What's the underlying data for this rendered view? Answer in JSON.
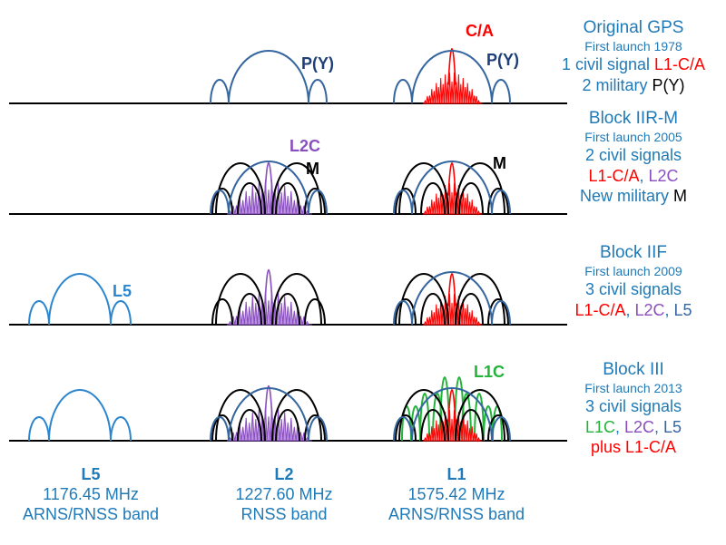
{
  "colors": {
    "title_blue": "#1f7ab8",
    "military_blue": "#3566a0",
    "py_label": "#1f3f78",
    "ca_red": "#ff0000",
    "ca_fill": "#ff7a7a",
    "l2c_purple": "#8a4fbf",
    "l2c_fill": "#b07fe0",
    "m_black": "#000000",
    "l5_blue": "#2b86cf",
    "l1c_green": "#22b33a",
    "axis": "#000000"
  },
  "panels": [
    {
      "title": "Original GPS",
      "launch": "First launch 1978",
      "lines": [
        [
          {
            "t": "1 civil signal ",
            "c": "#1f7ab8"
          },
          {
            "t": "L1-C/A",
            "c": "#ff0000"
          }
        ],
        [
          {
            "t": "2 military ",
            "c": "#1f7ab8"
          },
          {
            "t": "P(Y)",
            "c": "#000000"
          }
        ]
      ],
      "labels": {
        "l2_py": "P(Y)",
        "l1_ca": "C/A",
        "l1_py": "P(Y)"
      }
    },
    {
      "title": "Block IIR-M",
      "launch": "First launch 2005",
      "lines": [
        [
          {
            "t": "2 civil signals",
            "c": "#1f7ab8"
          }
        ],
        [
          {
            "t": "L1-C/A",
            "c": "#ff0000"
          },
          {
            "t": ", ",
            "c": "#1f7ab8"
          },
          {
            "t": "L2C",
            "c": "#8a4fbf"
          }
        ],
        [
          {
            "t": "New military ",
            "c": "#1f7ab8"
          },
          {
            "t": "M",
            "c": "#000000"
          }
        ]
      ],
      "labels": {
        "l2_l2c": "L2C",
        "l2_m": "M",
        "l1_m": "M"
      }
    },
    {
      "title": "Block IIF",
      "launch": "First launch 2009",
      "lines": [
        [
          {
            "t": "3 civil signals",
            "c": "#1f7ab8"
          }
        ],
        [
          {
            "t": "L1-C/A",
            "c": "#ff0000"
          },
          {
            "t": ", ",
            "c": "#1f7ab8"
          },
          {
            "t": "L2C",
            "c": "#8a4fbf"
          },
          {
            "t": ", ",
            "c": "#1f7ab8"
          },
          {
            "t": "L5",
            "c": "#3566a0"
          }
        ]
      ],
      "labels": {
        "l5": "L5"
      }
    },
    {
      "title": "Block III",
      "launch": "First launch 2013",
      "lines": [
        [
          {
            "t": "3 civil signals",
            "c": "#1f7ab8"
          }
        ],
        [
          {
            "t": "L1C",
            "c": "#22b33a"
          },
          {
            "t": ", ",
            "c": "#1f7ab8"
          },
          {
            "t": "L2C",
            "c": "#8a4fbf"
          },
          {
            "t": ", ",
            "c": "#1f7ab8"
          },
          {
            "t": "L5",
            "c": "#3566a0"
          }
        ],
        [
          {
            "t": "plus L1-C/A",
            "c": "#ff0000"
          }
        ]
      ],
      "labels": {
        "l1c": "L1C"
      }
    }
  ],
  "bands": [
    {
      "name": "L5",
      "freq": "1176.45 MHz",
      "band": "ARNS/RNSS band"
    },
    {
      "name": "L2",
      "freq": "1227.60 MHz",
      "band": "RNSS band"
    },
    {
      "name": "L1",
      "freq": "1575.42 MHz",
      "band": "ARNS/RNSS band"
    }
  ]
}
